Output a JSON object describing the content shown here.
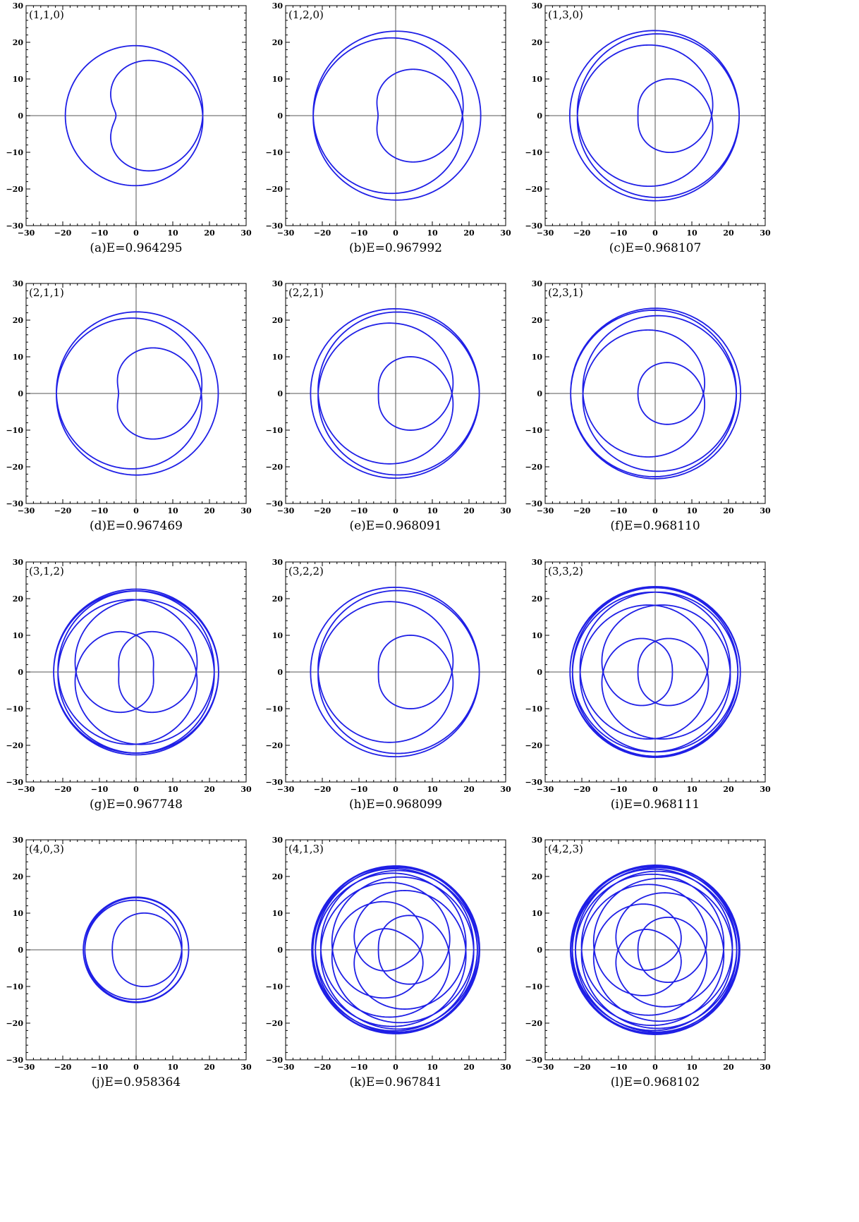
{
  "page": {
    "background": "#ffffff"
  },
  "style": {
    "curve_color": "#1f1fe6",
    "axis_color": "#555555",
    "frame_color": "#000000"
  },
  "chart_data": [
    {
      "type": "line",
      "label": "(1,1,0)",
      "caption": "(a)E=0.964295",
      "xlim": [
        -30,
        30
      ],
      "ylim": [
        -30,
        30
      ],
      "xticks": [
        -30,
        -20,
        -10,
        0,
        10,
        20,
        30
      ],
      "yticks": [
        -30,
        -20,
        -10,
        0,
        10,
        20,
        30
      ],
      "q": 1,
      "w": 1,
      "v": 0,
      "ra": 19.3,
      "rp": 5.5,
      "series": [
        {
          "color": "#1f1fe6"
        }
      ]
    },
    {
      "type": "line",
      "label": "(1,2,0)",
      "caption": "(b)E=0.967992",
      "xlim": [
        -30,
        30
      ],
      "ylim": [
        -30,
        30
      ],
      "xticks": [
        -30,
        -20,
        -10,
        0,
        10,
        20,
        30
      ],
      "yticks": [
        -30,
        -20,
        -10,
        0,
        10,
        20,
        30
      ],
      "q": 1,
      "w": 2,
      "v": 0,
      "ra": 23.2,
      "rp": 4.8,
      "series": [
        {
          "color": "#1f1fe6"
        }
      ]
    },
    {
      "type": "line",
      "label": "(1,3,0)",
      "caption": "(c)E=0.968107",
      "xlim": [
        -30,
        30
      ],
      "ylim": [
        -30,
        30
      ],
      "xticks": [
        -30,
        -20,
        -10,
        0,
        10,
        20,
        30
      ],
      "yticks": [
        -30,
        -20,
        -10,
        0,
        10,
        20,
        30
      ],
      "q": 1,
      "w": 3,
      "v": 0,
      "ra": 23.3,
      "rp": 4.7,
      "series": [
        {
          "color": "#1f1fe6"
        }
      ]
    },
    {
      "type": "line",
      "label": "(2,1,1)",
      "caption": "(d)E=0.967469",
      "xlim": [
        -30,
        30
      ],
      "ylim": [
        -30,
        30
      ],
      "xticks": [
        -30,
        -20,
        -10,
        0,
        10,
        20,
        30
      ],
      "yticks": [
        -30,
        -20,
        -10,
        0,
        10,
        20,
        30
      ],
      "q": 2,
      "w": 1,
      "v": 1,
      "ra": 22.4,
      "rp": 4.8,
      "series": [
        {
          "color": "#1f1fe6"
        }
      ]
    },
    {
      "type": "line",
      "label": "(2,2,1)",
      "caption": "(e)E=0.968091",
      "xlim": [
        -30,
        30
      ],
      "ylim": [
        -30,
        30
      ],
      "xticks": [
        -30,
        -20,
        -10,
        0,
        10,
        20,
        30
      ],
      "yticks": [
        -30,
        -20,
        -10,
        0,
        10,
        20,
        30
      ],
      "q": 2,
      "w": 2,
      "v": 1,
      "ra": 23.2,
      "rp": 4.7,
      "series": [
        {
          "color": "#1f1fe6"
        }
      ]
    },
    {
      "type": "line",
      "label": "(2,3,1)",
      "caption": "(f)E=0.968110",
      "xlim": [
        -30,
        30
      ],
      "ylim": [
        -30,
        30
      ],
      "xticks": [
        -30,
        -20,
        -10,
        0,
        10,
        20,
        30
      ],
      "yticks": [
        -30,
        -20,
        -10,
        0,
        10,
        20,
        30
      ],
      "q": 2,
      "w": 3,
      "v": 1,
      "ra": 23.3,
      "rp": 4.7,
      "series": [
        {
          "color": "#1f1fe6"
        }
      ]
    },
    {
      "type": "line",
      "label": "(3,1,2)",
      "caption": "(g)E=0.967748",
      "xlim": [
        -30,
        30
      ],
      "ylim": [
        -30,
        30
      ],
      "xticks": [
        -30,
        -20,
        -10,
        0,
        10,
        20,
        30
      ],
      "yticks": [
        -30,
        -20,
        -10,
        0,
        10,
        20,
        30
      ],
      "q": 3,
      "w": 1,
      "v": 2,
      "ra": 22.6,
      "rp": 4.7,
      "series": [
        {
          "color": "#1f1fe6"
        }
      ]
    },
    {
      "type": "line",
      "label": "(3,2,2)",
      "caption": "(h)E=0.968099",
      "xlim": [
        -30,
        30
      ],
      "ylim": [
        -30,
        30
      ],
      "xticks": [
        -30,
        -20,
        -10,
        0,
        10,
        20,
        30
      ],
      "yticks": [
        -30,
        -20,
        -10,
        0,
        10,
        20,
        30
      ],
      "q": 3,
      "w": 2,
      "v": 2,
      "ra": 23.2,
      "rp": 4.7,
      "series": [
        {
          "color": "#1f1fe6"
        }
      ]
    },
    {
      "type": "line",
      "label": "(3,3,2)",
      "caption": "(i)E=0.968111",
      "xlim": [
        -30,
        30
      ],
      "ylim": [
        -30,
        30
      ],
      "xticks": [
        -30,
        -20,
        -10,
        0,
        10,
        20,
        30
      ],
      "yticks": [
        -30,
        -20,
        -10,
        0,
        10,
        20,
        30
      ],
      "q": 3,
      "w": 3,
      "v": 2,
      "ra": 23.3,
      "rp": 4.7,
      "series": [
        {
          "color": "#1f1fe6"
        }
      ]
    },
    {
      "type": "line",
      "label": "(4,0,3)",
      "caption": "(j)E=0.958364",
      "xlim": [
        -30,
        30
      ],
      "ylim": [
        -30,
        30
      ],
      "xticks": [
        -30,
        -20,
        -10,
        0,
        10,
        20,
        30
      ],
      "yticks": [
        -30,
        -20,
        -10,
        0,
        10,
        20,
        30
      ],
      "q": 4,
      "w": 0,
      "v": 3,
      "ra": 14.4,
      "rp": 6.5,
      "series": [
        {
          "color": "#1f1fe6"
        }
      ]
    },
    {
      "type": "line",
      "label": "(4,1,3)",
      "caption": "(k)E=0.967841",
      "xlim": [
        -30,
        30
      ],
      "ylim": [
        -30,
        30
      ],
      "xticks": [
        -30,
        -20,
        -10,
        0,
        10,
        20,
        30
      ],
      "yticks": [
        -30,
        -20,
        -10,
        0,
        10,
        20,
        30
      ],
      "q": 4,
      "w": 1,
      "v": 3,
      "ra": 22.9,
      "rp": 4.7,
      "series": [
        {
          "color": "#1f1fe6"
        }
      ]
    },
    {
      "type": "line",
      "label": "(4,2,3)",
      "caption": "(l)E=0.968102",
      "xlim": [
        -30,
        30
      ],
      "ylim": [
        -30,
        30
      ],
      "xticks": [
        -30,
        -20,
        -10,
        0,
        10,
        20,
        30
      ],
      "yticks": [
        -30,
        -20,
        -10,
        0,
        10,
        20,
        30
      ],
      "q": 4,
      "w": 2,
      "v": 3,
      "ra": 23.1,
      "rp": 4.7,
      "series": [
        {
          "color": "#1f1fe6"
        }
      ]
    }
  ]
}
